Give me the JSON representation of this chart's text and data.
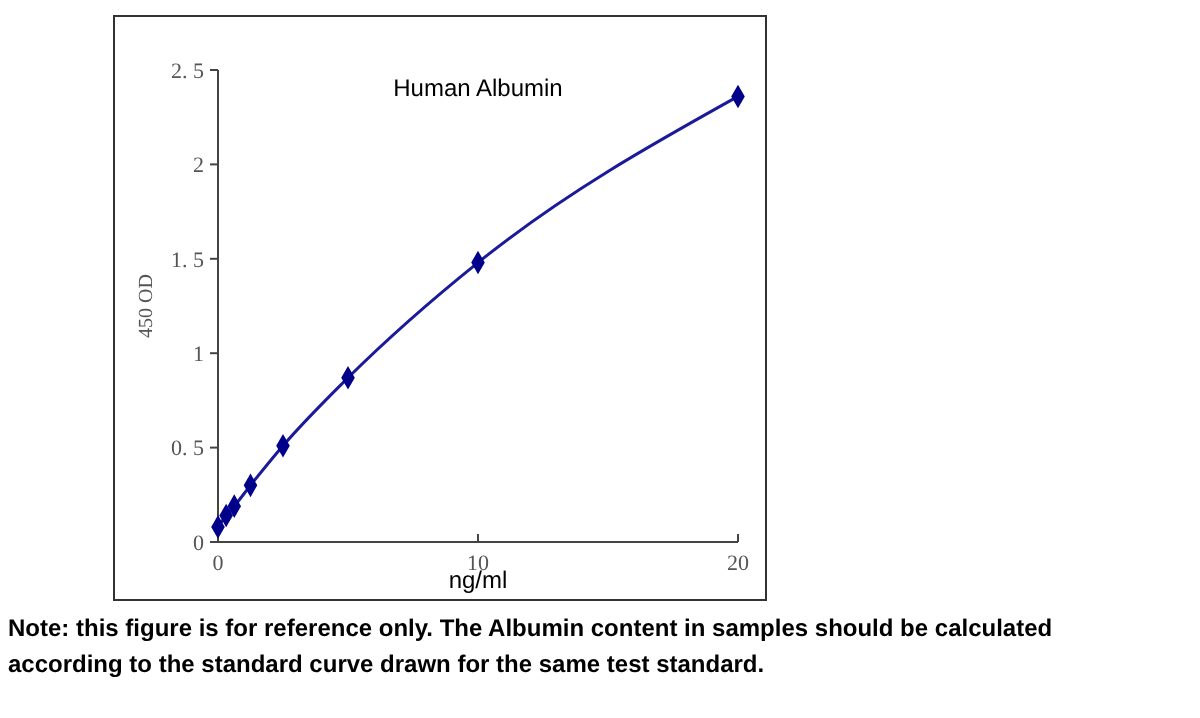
{
  "chart_data": {
    "type": "line",
    "title": "Human Albumin",
    "xlabel": "ng/ml",
    "ylabel": "450 OD",
    "series": [
      {
        "color": "#1a1a9a",
        "x": [
          0,
          0.3125,
          0.625,
          1.25,
          2.5,
          5,
          10,
          20
        ],
        "values": [
          0.08,
          0.14,
          0.19,
          0.3,
          0.51,
          0.87,
          1.48,
          2.36
        ]
      }
    ],
    "xlim": [
      0,
      20
    ],
    "xticks": [
      0,
      10,
      20
    ],
    "ylim": [
      0,
      2.5
    ],
    "yticks": [
      0,
      {
        "value": 0.5,
        "label": "0. 5"
      },
      1,
      {
        "value": 1.5,
        "label": "1. 5"
      },
      2,
      {
        "value": 2.5,
        "label": "2. 5"
      }
    ],
    "marker": "diamond",
    "line_style": "solid",
    "grid": false,
    "annotations": [
      "Note: this figure is for reference only. The Albumin content in samples should be calculated according to the standard curve drawn for the same test standard."
    ]
  }
}
